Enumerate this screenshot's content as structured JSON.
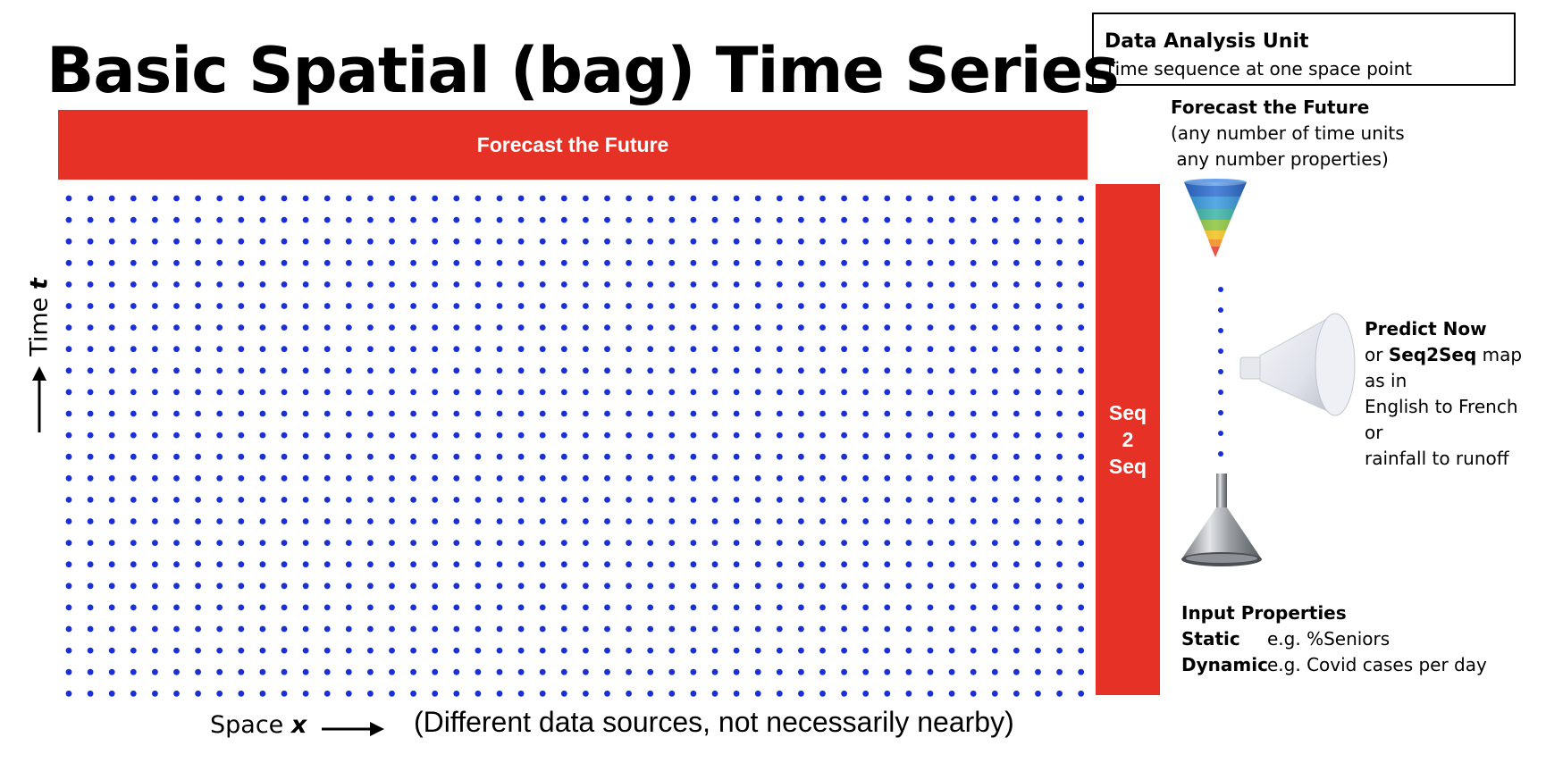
{
  "title": "Basic Spatial (bag) Time Series",
  "data_unit": {
    "heading": "Data Analysis Unit",
    "subtitle": "Time sequence at one space point"
  },
  "forecast_bar": {
    "label": "Forecast the Future"
  },
  "seq_bar": {
    "line1": "Seq",
    "line2": "2",
    "line3": "Seq"
  },
  "grid": {
    "columns": 48,
    "rows": 24,
    "dot_color": "#1a2fd6"
  },
  "axes": {
    "time_label": "Time",
    "time_var": "t",
    "space_label": "Space",
    "space_var": "x",
    "sources_note": "(Different data sources, not necessarily nearby)"
  },
  "forecast_notes": {
    "heading": "Forecast the Future",
    "line1": "(any number of time units",
    "line2": " any number properties)"
  },
  "predict_notes": {
    "heading": "Predict Now",
    "line1_pre": "or ",
    "line1_bold": "Seq2Seq",
    "line1_post": " map",
    "line2": "as in",
    "line3": "English to French",
    "line4": "or",
    "line5": "rainfall to runoff"
  },
  "input_notes": {
    "heading": "Input Properties",
    "static_key": "Static",
    "static_val": "e.g. %Seniors",
    "dynamic_key": "Dynamic",
    "dynamic_val": "e.g. Covid cases per day"
  },
  "colors": {
    "accent_red": "#e63226",
    "dot_blue": "#1a2fd6"
  },
  "icons": [
    "rainbow-funnel-icon",
    "white-funnel-icon",
    "steel-funnel-icon",
    "up-arrow-icon",
    "right-arrow-icon"
  ]
}
